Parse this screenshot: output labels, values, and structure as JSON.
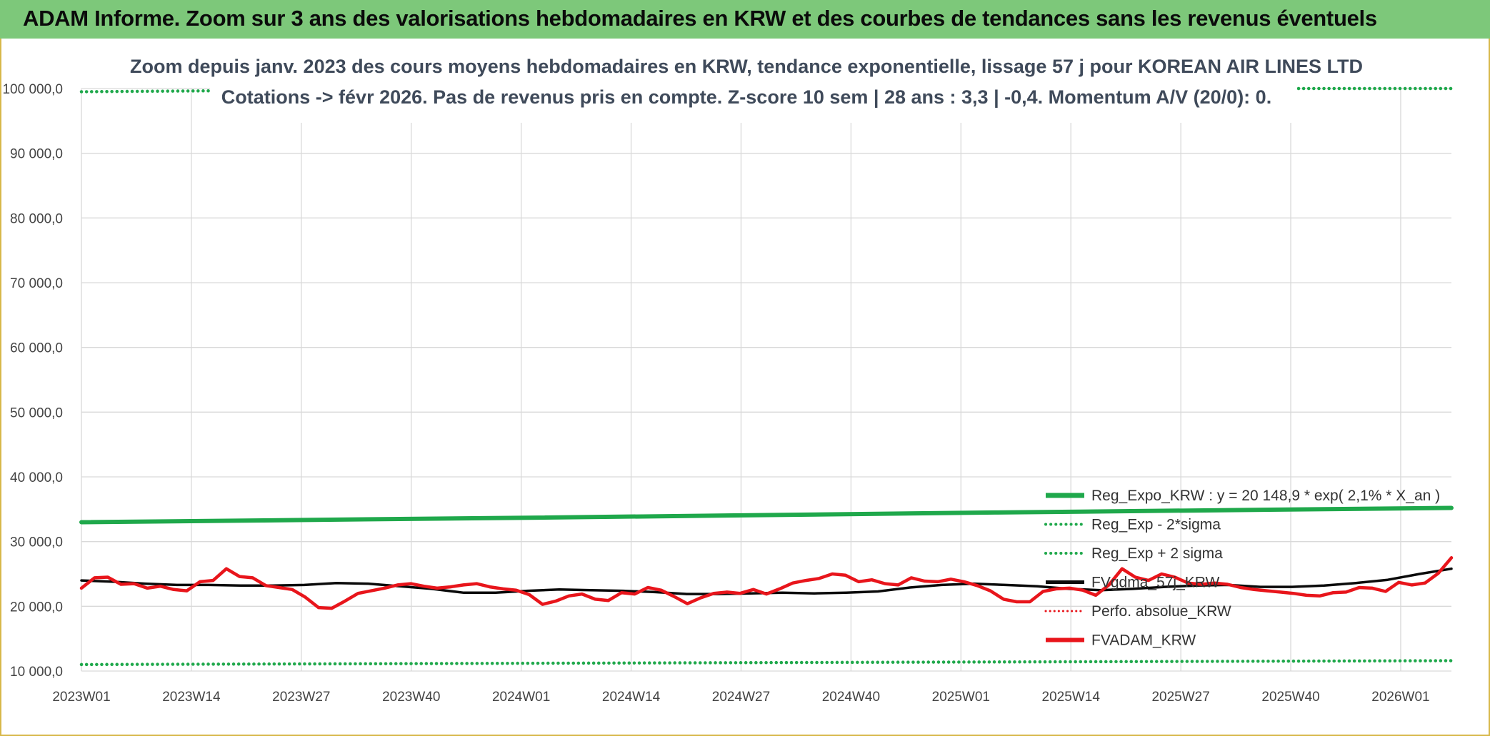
{
  "banner": {
    "title": "ADAM Informe. Zoom sur 3 ans des valorisations hebdomadaires en KRW et des courbes de tendances sans les revenus éventuels"
  },
  "colors": {
    "banner_bg": "#7dc87a",
    "regression": "#1fa84b",
    "price": "#e8151b",
    "moving_average": "#0a0a0a",
    "perf": "#e8151b",
    "grid": "#d9d9d9"
  },
  "chart_data": {
    "type": "line",
    "title": "Zoom depuis janv. 2023 des cours moyens hebdomadaires en KRW, tendance exponentielle, lissage 57 j pour KOREAN AIR LINES LTD",
    "subtitle": "Cotations -> févr 2026. Pas de revenus pris en compte. Z-score 10 sem | 28 ans : 3,3 | -0,4. Momentum A/V (20/0): 0.",
    "ylim": [
      10000,
      100000
    ],
    "y_ticks": [
      10000,
      20000,
      30000,
      40000,
      50000,
      60000,
      70000,
      80000,
      90000,
      100000
    ],
    "y_tick_labels": [
      "10 000,0",
      "20 000,0",
      "30 000,0",
      "40 000,0",
      "50 000,0",
      "60 000,0",
      "70 000,0",
      "80 000,0",
      "90 000,0",
      "100 000,0"
    ],
    "x_tick_labels": [
      "2023W01",
      "2023W14",
      "2023W27",
      "2023W40",
      "2024W01",
      "2024W14",
      "2024W27",
      "2024W40",
      "2025W01",
      "2025W14",
      "2025W27",
      "2025W40",
      "2026W01"
    ],
    "weeks_per_tick": 13,
    "n_weeks": 163,
    "grid": true,
    "legend_position": "bottom-right",
    "series": [
      {
        "name": "Reg_Expo_KRW : y = 20 148,9 * exp( 2,1% * X_an )",
        "style": "solid-thick",
        "color": "#1fa84b",
        "values": [
          33000,
          33700,
          34500,
          35200
        ]
      },
      {
        "name": "Reg_Exp - 2*sigma",
        "style": "dotted",
        "color": "#1fa84b",
        "values": [
          11000,
          11200,
          11400,
          11600
        ]
      },
      {
        "name": "Reg_Exp + 2 sigma",
        "style": "dotted",
        "color": "#1fa84b",
        "values": [
          99500,
          100000,
          100000,
          100000
        ]
      },
      {
        "name": "FVgdma_57j_KRW",
        "style": "solid",
        "color": "#0a0a0a",
        "values": [
          24000,
          23800,
          23500,
          23300,
          23300,
          23200,
          23200,
          23300,
          23600,
          23500,
          23100,
          22700,
          22100,
          22100,
          22400,
          22600,
          22500,
          22400,
          22200,
          21900,
          21900,
          22000,
          22100,
          22000,
          22100,
          22300,
          22900,
          23300,
          23500,
          23300,
          23100,
          22700,
          22500,
          22700,
          23000,
          23200,
          23300,
          23000,
          23000,
          23200,
          23600,
          24100,
          25000,
          25800
        ]
      },
      {
        "name": "Perfo. absolue_KRW",
        "style": "dotted",
        "color": "#e8151b",
        "values": []
      },
      {
        "name": "FVADAM_KRW",
        "style": "solid-thick",
        "color": "#e8151b",
        "values": [
          22800,
          24400,
          24500,
          23400,
          23500,
          22800,
          23100,
          22600,
          22400,
          23800,
          24000,
          25800,
          24600,
          24400,
          23200,
          22900,
          22600,
          21400,
          19800,
          19700,
          20800,
          22000,
          22400,
          22800,
          23300,
          23500,
          23100,
          22800,
          23000,
          23300,
          23500,
          23000,
          22700,
          22500,
          21800,
          20300,
          20800,
          21600,
          21900,
          21100,
          20900,
          22100,
          21900,
          22900,
          22500,
          21500,
          20400,
          21300,
          22000,
          22200,
          22000,
          22600,
          21900,
          22700,
          23600,
          24000,
          24300,
          25000,
          24800,
          23800,
          24100,
          23500,
          23300,
          24400,
          23900,
          23800,
          24200,
          23800,
          23200,
          22400,
          21100,
          20700,
          20700,
          22300,
          22700,
          22800,
          22500,
          21700,
          23300,
          25800,
          24500,
          24000,
          25000,
          24500,
          23600,
          23400,
          23600,
          23400,
          22900,
          22600,
          22400,
          22200,
          22000,
          21700,
          21600,
          22100,
          22200,
          22900,
          22800,
          22300,
          23700,
          23300,
          23600,
          25100,
          27500
        ]
      }
    ]
  }
}
